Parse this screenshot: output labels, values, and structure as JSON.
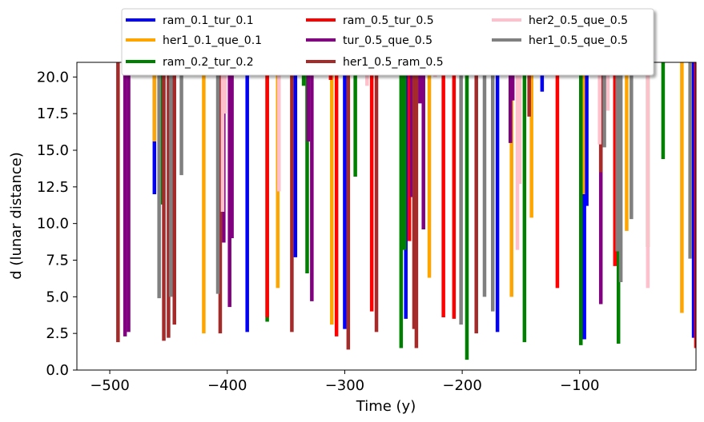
{
  "chart_data": {
    "type": "line",
    "xlabel": "Time (y)",
    "ylabel": "d (lunar distance)",
    "xlim": [
      -528,
      -1
    ],
    "ylim": [
      0,
      21
    ],
    "x_ticks": [
      -500,
      -400,
      -300,
      -200,
      -100
    ],
    "x_tick_labels": [
      "−500",
      "−400",
      "−300",
      "−200",
      "−100"
    ],
    "y_ticks": [
      0.0,
      2.5,
      5.0,
      7.5,
      10.0,
      12.5,
      15.0,
      17.5,
      20.0
    ],
    "y_tick_labels": [
      "0.0",
      "2.5",
      "5.0",
      "7.5",
      "10.0",
      "12.5",
      "15.0",
      "17.5",
      "20.0"
    ],
    "grid": false,
    "legend_position": "upper center",
    "legend_columns": 3,
    "series": [
      {
        "name": "ram_0.1_tur_0.1",
        "color": "#0000ff",
        "segments": [
          [
            -462,
            12.0,
            21
          ],
          [
            -383,
            2.6,
            21
          ],
          [
            -342,
            7.7,
            21
          ],
          [
            -300,
            2.8,
            21
          ],
          [
            -248,
            3.5,
            21
          ],
          [
            -170,
            2.6,
            21
          ],
          [
            -132,
            19.0,
            21
          ],
          [
            -96,
            2.1,
            21
          ],
          [
            -94,
            11.2,
            21
          ],
          [
            -3,
            2.2,
            21
          ]
        ]
      },
      {
        "name": "her1_0.1_que_0.1",
        "color": "#ffa500",
        "segments": [
          [
            -462,
            15.6,
            21
          ],
          [
            -420,
            2.5,
            21
          ],
          [
            -357,
            5.6,
            21
          ],
          [
            -311,
            3.1,
            21
          ],
          [
            -228,
            6.3,
            21
          ],
          [
            -158,
            5.0,
            21
          ],
          [
            -141,
            10.4,
            21
          ],
          [
            -97,
            12.0,
            21
          ],
          [
            -60,
            9.5,
            21
          ],
          [
            -13,
            3.9,
            21
          ]
        ]
      },
      {
        "name": "ram_0.2_tur_0.2",
        "color": "#008000",
        "segments": [
          [
            -455,
            11.3,
            21
          ],
          [
            -366,
            3.3,
            21
          ],
          [
            -335,
            19.4,
            21
          ],
          [
            -332,
            6.6,
            21
          ],
          [
            -291,
            13.2,
            21
          ],
          [
            -252,
            1.5,
            21
          ],
          [
            -249,
            8.2,
            21
          ],
          [
            -196,
            0.7,
            21
          ],
          [
            -147,
            1.9,
            21
          ],
          [
            -99,
            1.7,
            21
          ],
          [
            -67,
            1.8,
            21
          ],
          [
            -42,
            8.4,
            21
          ],
          [
            -29,
            14.4,
            21
          ]
        ]
      },
      {
        "name": "ram_0.5_tur_0.5",
        "color": "#ff0000",
        "segments": [
          [
            -366,
            3.6,
            21
          ],
          [
            -312,
            19.8,
            21
          ],
          [
            -307,
            2.3,
            21
          ],
          [
            -277,
            4.0,
            21
          ],
          [
            -245,
            8.8,
            21
          ],
          [
            -216,
            3.6,
            21
          ],
          [
            -207,
            3.5,
            21
          ],
          [
            -119,
            5.6,
            21
          ],
          [
            -70,
            7.1,
            21
          ],
          [
            -1,
            1.5,
            21
          ]
        ]
      },
      {
        "name": "tur_0.5_que_0.5",
        "color": "#800080",
        "segments": [
          [
            -487,
            2.3,
            21
          ],
          [
            -484,
            2.6,
            21
          ],
          [
            -403,
            8.7,
            21
          ],
          [
            -398,
            4.3,
            21
          ],
          [
            -396,
            9.0,
            21
          ],
          [
            -331,
            15.6,
            21
          ],
          [
            -328,
            4.7,
            21
          ],
          [
            -243,
            11.8,
            21
          ],
          [
            -236,
            18.2,
            21
          ],
          [
            -233,
            9.6,
            21
          ],
          [
            -159,
            15.5,
            21
          ],
          [
            -157,
            18.4,
            21
          ],
          [
            -82,
            4.5,
            21
          ]
        ]
      },
      {
        "name": "her1_0.5_ram_0.5",
        "color": "#a52a2a",
        "segments": [
          [
            -493,
            1.9,
            21
          ],
          [
            -454,
            2.0,
            21
          ],
          [
            -450,
            2.2,
            21
          ],
          [
            -445,
            3.1,
            21
          ],
          [
            -406,
            2.5,
            21
          ],
          [
            -345,
            2.6,
            21
          ],
          [
            -297,
            1.4,
            21
          ],
          [
            -273,
            2.6,
            21
          ],
          [
            -241,
            2.8,
            21
          ],
          [
            -239,
            1.5,
            21
          ],
          [
            -188,
            2.5,
            21
          ],
          [
            -143,
            17.3,
            21
          ],
          [
            -82,
            13.5,
            21
          ]
        ]
      },
      {
        "name": "her2_0.5_que_0.5",
        "color": "#ffc0cb",
        "segments": [
          [
            -404,
            10.8,
            21
          ],
          [
            -402,
            17.5,
            21
          ],
          [
            -356,
            12.2,
            21
          ],
          [
            -281,
            19.4,
            21
          ],
          [
            -223,
            20.0,
            21
          ],
          [
            -153,
            8.2,
            21
          ],
          [
            -151,
            12.7,
            21
          ],
          [
            -83,
            15.4,
            21
          ],
          [
            -76,
            17.7,
            21
          ],
          [
            -42,
            5.6,
            21
          ]
        ]
      },
      {
        "name": "her1_0.5_que_0.5",
        "color": "#808080",
        "segments": [
          [
            -458,
            4.9,
            21
          ],
          [
            -448,
            5.0,
            21
          ],
          [
            -439,
            13.3,
            21
          ],
          [
            -408,
            5.2,
            21
          ],
          [
            -201,
            3.1,
            21
          ],
          [
            -181,
            5.0,
            21
          ],
          [
            -174,
            4.0,
            21
          ],
          [
            -79,
            15.2,
            21
          ],
          [
            -68,
            8.1,
            21
          ],
          [
            -65,
            6.0,
            21
          ],
          [
            -56,
            10.3,
            21
          ],
          [
            -6,
            7.6,
            21
          ]
        ]
      }
    ]
  }
}
